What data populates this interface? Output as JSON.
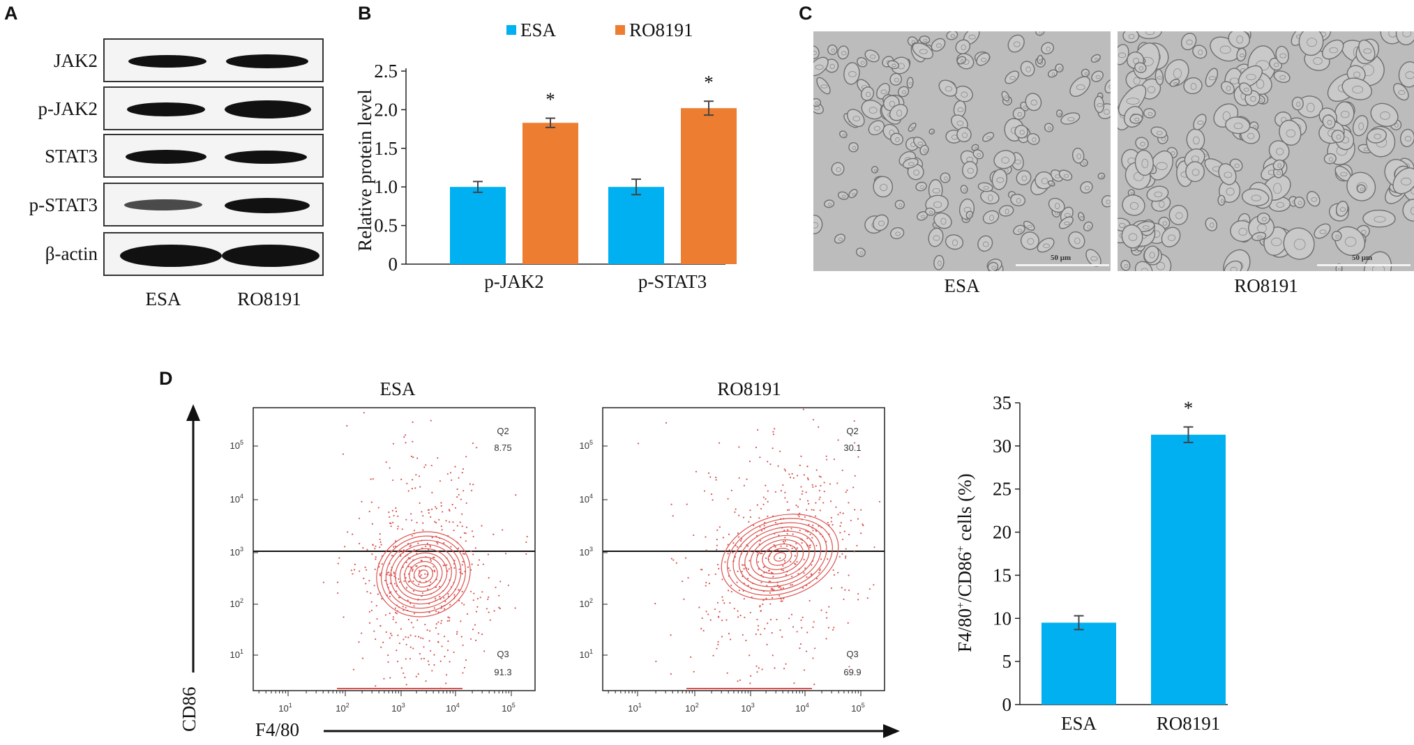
{
  "panels": {
    "a": {
      "letter": "A",
      "proteins": [
        "JAK2",
        "p-JAK2",
        "STAT3",
        "p-STAT3",
        "β-actin"
      ],
      "lanes": [
        "ESA",
        "RO8191"
      ]
    },
    "b": {
      "letter": "B"
    },
    "c": {
      "letter": "C",
      "images": [
        {
          "label": "ESA",
          "scale_bar": "50 μm"
        },
        {
          "label": "RO8191",
          "scale_bar": "50 μm"
        }
      ]
    },
    "d": {
      "letter": "D",
      "flow": {
        "plots": [
          {
            "title": "ESA",
            "q2_label": "Q2",
            "q2_value": "8.75",
            "q3_label": "Q3",
            "q3_value": "91.3"
          },
          {
            "title": "RO8191",
            "q2_label": "Q2",
            "q2_value": "30.1",
            "q3_label": "Q3",
            "q3_value": "69.9"
          }
        ],
        "y_axis_label": "CD86",
        "x_axis_label": "F4/80",
        "tick_labels": [
          "10",
          "10",
          "10",
          "10",
          "10"
        ],
        "tick_exponents": [
          "1",
          "2",
          "3",
          "4",
          "5"
        ]
      }
    }
  },
  "colors": {
    "esa": "#00b0f0",
    "ro8191": "#ed7d31",
    "contour": "#d9534f"
  },
  "chart_data": [
    {
      "type": "bar",
      "categories": [
        "p-JAK2",
        "p-STAT3"
      ],
      "series": [
        {
          "name": "ESA",
          "values": [
            1.0,
            1.0
          ],
          "errors": [
            0.07,
            0.1
          ]
        },
        {
          "name": "RO8191",
          "values": [
            1.83,
            2.02
          ],
          "errors": [
            0.06,
            0.09
          ]
        }
      ],
      "significance": [
        "*",
        "*"
      ],
      "ylabel": "Relative protein level",
      "yticks": [
        "0",
        "0.5",
        "1.0",
        "1.5",
        "2.0",
        "2.5"
      ],
      "ylim": [
        0,
        2.5
      ],
      "legend": "top"
    },
    {
      "type": "bar",
      "categories": [
        "ESA",
        "RO8191"
      ],
      "values": [
        9.5,
        31.3
      ],
      "errors": [
        0.8,
        0.9
      ],
      "significance": [
        "",
        "*"
      ],
      "ylabel_main": "F4/80",
      "ylabel_sup1": "+",
      "ylabel_mid": "/CD86",
      "ylabel_sup2": "+",
      "ylabel_tail": " cells (%)",
      "yticks": [
        "0",
        "5",
        "10",
        "15",
        "20",
        "25",
        "30",
        "35"
      ],
      "ylim": [
        0,
        35
      ]
    }
  ]
}
